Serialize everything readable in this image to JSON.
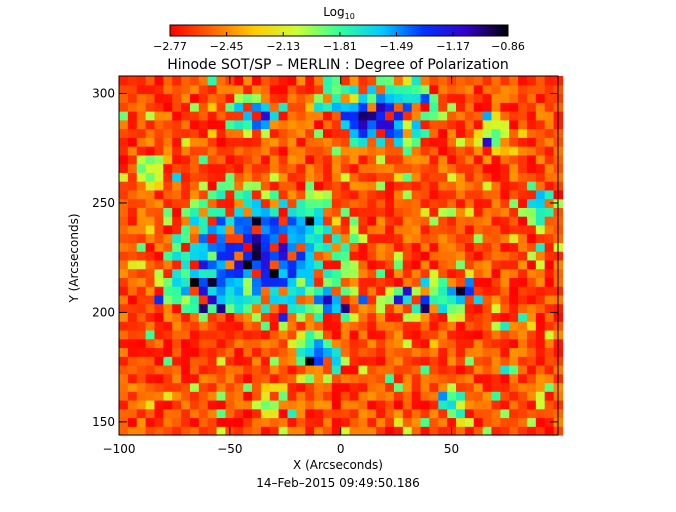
{
  "chart_data": {
    "type": "heatmap",
    "title": "Hinode SOT/SP – MERLIN : Degree of Polarization",
    "xlabel": "X (Arcseconds)",
    "ylabel": "Y (Arcseconds)",
    "timestamp": "14–Feb–2015 09:49:50.186",
    "xlim": [
      -100,
      98
    ],
    "ylim": [
      144,
      308
    ],
    "x_ticks": [
      -100,
      -50,
      0,
      50
    ],
    "x_tick_labels": [
      "−100",
      "−50",
      "0",
      "50"
    ],
    "y_ticks": [
      150,
      200,
      250,
      300
    ],
    "y_tick_labels": [
      "150",
      "200",
      "250",
      "300"
    ],
    "colorbar": {
      "label_main": "Log",
      "label_sub": "10",
      "min": -2.77,
      "max": -0.86,
      "ticks": [
        -2.77,
        -2.45,
        -2.13,
        -1.81,
        -1.49,
        -1.17,
        -0.86
      ],
      "tick_labels": [
        "−2.77",
        "−2.45",
        "−2.13",
        "−1.81",
        "−1.49",
        "−1.17",
        "−0.86"
      ],
      "colormap": [
        "#ff0000",
        "#ff6600",
        "#ffcc00",
        "#ccff33",
        "#33ff99",
        "#00ccff",
        "#0033ff",
        "#3300cc",
        "#000000"
      ]
    },
    "regions": [
      {
        "type": "high_polarization_network",
        "x": -38,
        "y": 228,
        "rx": 30,
        "ry": 22,
        "level": -1.05
      },
      {
        "type": "high_polarization_network",
        "x": -62,
        "y": 212,
        "rx": 14,
        "ry": 10,
        "level": -1.25
      },
      {
        "type": "high_polarization_network",
        "x": -5,
        "y": 205,
        "rx": 10,
        "ry": 7,
        "level": -1.2
      },
      {
        "type": "high_polarization_network",
        "x": 15,
        "y": 290,
        "rx": 20,
        "ry": 12,
        "level": -1.0
      },
      {
        "type": "high_polarization_network",
        "x": -38,
        "y": 291,
        "rx": 10,
        "ry": 6,
        "level": -1.1
      },
      {
        "type": "high_polarization_network",
        "x": -10,
        "y": 180,
        "rx": 10,
        "ry": 8,
        "level": -1.3
      },
      {
        "type": "high_polarization_network",
        "x": 55,
        "y": 210,
        "rx": 7,
        "ry": 5,
        "level": -0.9
      },
      {
        "type": "high_polarization_network",
        "x": 40,
        "y": 205,
        "rx": 16,
        "ry": 6,
        "level": -1.45
      },
      {
        "type": "high_polarization_network",
        "x": 50,
        "y": 160,
        "rx": 5,
        "ry": 6,
        "level": -1.5
      },
      {
        "type": "high_polarization_network",
        "x": -30,
        "y": 160,
        "rx": 4,
        "ry": 5,
        "level": -1.6
      },
      {
        "type": "high_polarization_network",
        "x": 90,
        "y": 250,
        "rx": 6,
        "ry": 8,
        "level": -1.4
      },
      {
        "type": "high_polarization_network",
        "x": -85,
        "y": 265,
        "rx": 8,
        "ry": 6,
        "level": -1.8
      },
      {
        "type": "high_polarization_network",
        "x": 70,
        "y": 280,
        "rx": 8,
        "ry": 7,
        "level": -1.9
      }
    ]
  }
}
